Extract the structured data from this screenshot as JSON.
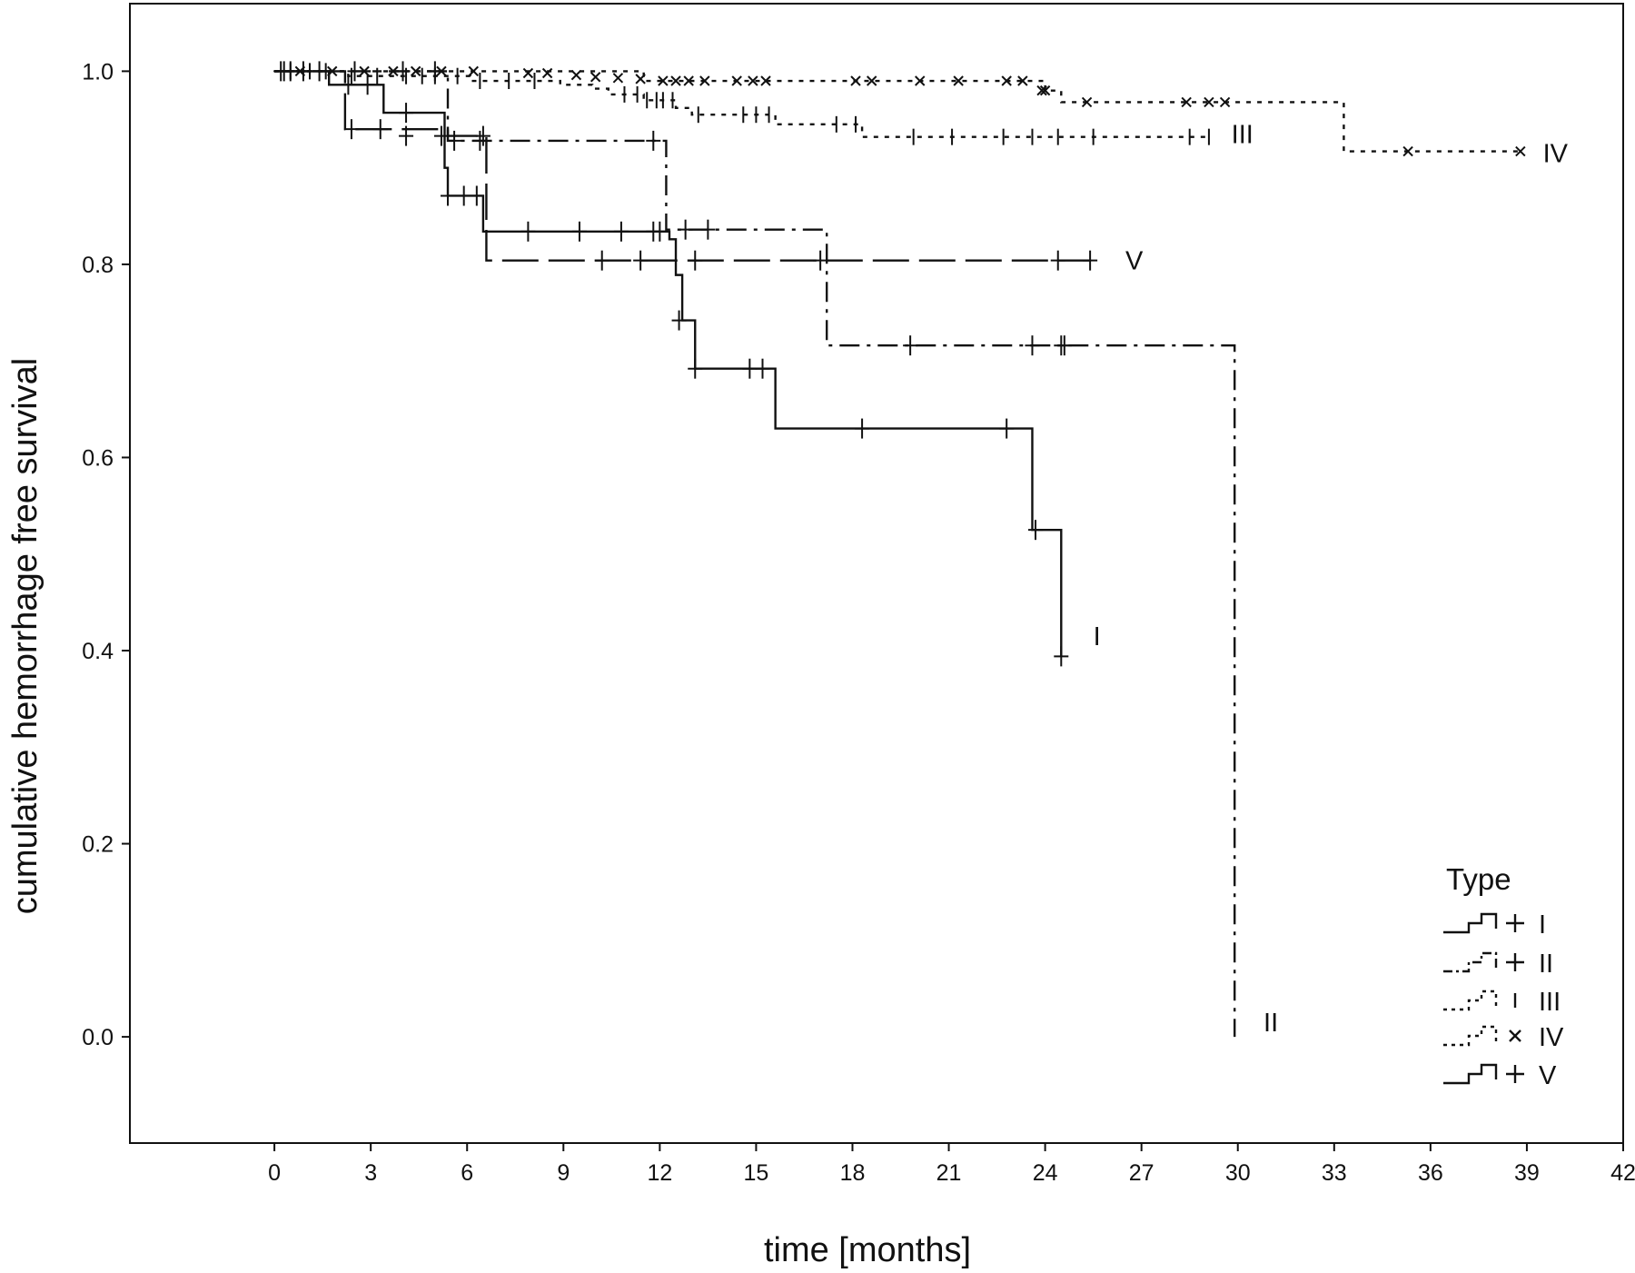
{
  "chart_data": {
    "type": "line",
    "step": true,
    "title": "",
    "xlabel": "time [months]",
    "ylabel": "cumulative hemorrhage free survival",
    "xlim": [
      -4.5,
      42
    ],
    "ylim": [
      -0.11,
      1.07
    ],
    "x_ticks": [
      0,
      3,
      6,
      9,
      12,
      15,
      18,
      21,
      24,
      27,
      30,
      33,
      36,
      39,
      42
    ],
    "y_ticks": [
      0.0,
      0.2,
      0.4,
      0.6,
      0.8,
      1.0
    ],
    "y_tick_format": "0.0",
    "grid": false,
    "legend": {
      "title": "Type",
      "position": "bottom-right"
    },
    "series": [
      {
        "name": "I",
        "dash": "solid",
        "censor_marker": "+",
        "steps": [
          [
            0,
            1.0
          ],
          [
            1.7,
            0.986
          ],
          [
            3.4,
            0.957
          ],
          [
            5.3,
            0.9
          ],
          [
            5.4,
            0.871
          ],
          [
            6.5,
            0.834
          ],
          [
            12.3,
            0.826
          ],
          [
            12.5,
            0.789
          ],
          [
            12.7,
            0.742
          ],
          [
            13.1,
            0.692
          ],
          [
            15.6,
            0.63
          ],
          [
            23.6,
            0.525
          ],
          [
            24.5,
            0.394
          ]
        ],
        "censored": [
          [
            0.2,
            1.0
          ],
          [
            0.5,
            1.0
          ],
          [
            0.9,
            1.0
          ],
          [
            1.4,
            1.0
          ],
          [
            2.3,
            0.986
          ],
          [
            2.9,
            0.986
          ],
          [
            4.1,
            0.957
          ],
          [
            5.4,
            0.871
          ],
          [
            5.9,
            0.871
          ],
          [
            6.3,
            0.871
          ],
          [
            7.9,
            0.834
          ],
          [
            9.5,
            0.834
          ],
          [
            10.8,
            0.834
          ],
          [
            11.8,
            0.834
          ],
          [
            12.0,
            0.834
          ],
          [
            12.6,
            0.742
          ],
          [
            13.1,
            0.692
          ],
          [
            14.8,
            0.692
          ],
          [
            15.2,
            0.692
          ],
          [
            18.3,
            0.63
          ],
          [
            22.8,
            0.63
          ],
          [
            23.7,
            0.525
          ],
          [
            24.5,
            0.394
          ]
        ],
        "end_label": {
          "text": "I",
          "x": 25.5,
          "y": 0.415
        }
      },
      {
        "name": "II",
        "dash": "dashdot",
        "censor_marker": "+",
        "steps": [
          [
            0,
            1.0
          ],
          [
            5.4,
            0.928
          ],
          [
            12.2,
            0.836
          ],
          [
            17.2,
            0.716
          ],
          [
            29.9,
            0.0
          ]
        ],
        "censored": [
          [
            0.3,
            1.0
          ],
          [
            2.5,
            1.0
          ],
          [
            4.0,
            1.0
          ],
          [
            5.0,
            1.0
          ],
          [
            5.6,
            0.928
          ],
          [
            6.4,
            0.928
          ],
          [
            11.8,
            0.928
          ],
          [
            12.8,
            0.836
          ],
          [
            13.5,
            0.836
          ],
          [
            19.8,
            0.716
          ],
          [
            23.6,
            0.716
          ],
          [
            24.5,
            0.716
          ],
          [
            24.6,
            0.716
          ]
        ],
        "end_label": {
          "text": "II",
          "x": 30.8,
          "y": 0.015
        }
      },
      {
        "name": "III",
        "dash": "dotted",
        "censor_marker": "|",
        "steps": [
          [
            0,
            1.0
          ],
          [
            2.3,
            0.995
          ],
          [
            6.1,
            0.99
          ],
          [
            8.9,
            0.986
          ],
          [
            9.9,
            0.982
          ],
          [
            10.4,
            0.976
          ],
          [
            11.5,
            0.97
          ],
          [
            12.5,
            0.962
          ],
          [
            13.0,
            0.955
          ],
          [
            15.6,
            0.945
          ],
          [
            18.3,
            0.932
          ]
        ],
        "censored": [
          [
            0.5,
            1.0
          ],
          [
            1.1,
            1.0
          ],
          [
            1.6,
            1.0
          ],
          [
            2.4,
            0.995
          ],
          [
            3.2,
            0.995
          ],
          [
            4.1,
            0.995
          ],
          [
            4.6,
            0.995
          ],
          [
            5.0,
            0.995
          ],
          [
            5.7,
            0.995
          ],
          [
            6.4,
            0.99
          ],
          [
            7.3,
            0.99
          ],
          [
            8.1,
            0.99
          ],
          [
            10.9,
            0.976
          ],
          [
            11.3,
            0.976
          ],
          [
            11.6,
            0.97
          ],
          [
            11.9,
            0.97
          ],
          [
            12.1,
            0.97
          ],
          [
            12.4,
            0.97
          ],
          [
            13.2,
            0.955
          ],
          [
            14.6,
            0.955
          ],
          [
            15.0,
            0.955
          ],
          [
            15.4,
            0.955
          ],
          [
            17.5,
            0.945
          ],
          [
            18.1,
            0.945
          ],
          [
            19.9,
            0.932
          ],
          [
            21.1,
            0.932
          ],
          [
            22.7,
            0.932
          ],
          [
            23.6,
            0.932
          ],
          [
            24.4,
            0.932
          ],
          [
            25.5,
            0.932
          ],
          [
            28.5,
            0.932
          ],
          [
            29.1,
            0.932
          ]
        ],
        "end_label": {
          "text": "III",
          "x": 29.8,
          "y": 0.935
        }
      },
      {
        "name": "IV",
        "dash": "dotted",
        "censor_marker": "x",
        "steps": [
          [
            0,
            1.0
          ],
          [
            11.5,
            0.99
          ],
          [
            24.0,
            0.98
          ],
          [
            24.5,
            0.968
          ],
          [
            33.3,
            0.917
          ]
        ],
        "censored": [
          [
            0.8,
            1.0
          ],
          [
            1.8,
            1.0
          ],
          [
            2.8,
            1.0
          ],
          [
            3.7,
            1.0
          ],
          [
            4.4,
            1.0
          ],
          [
            5.2,
            1.0
          ],
          [
            6.2,
            1.0
          ],
          [
            7.9,
            0.998
          ],
          [
            8.5,
            0.998
          ],
          [
            9.4,
            0.996
          ],
          [
            10.0,
            0.994
          ],
          [
            10.7,
            0.993
          ],
          [
            11.4,
            0.992
          ],
          [
            12.1,
            0.99
          ],
          [
            12.5,
            0.99
          ],
          [
            12.9,
            0.99
          ],
          [
            13.4,
            0.99
          ],
          [
            14.4,
            0.99
          ],
          [
            14.9,
            0.99
          ],
          [
            15.3,
            0.99
          ],
          [
            18.1,
            0.99
          ],
          [
            18.6,
            0.99
          ],
          [
            20.1,
            0.99
          ],
          [
            21.3,
            0.99
          ],
          [
            22.8,
            0.99
          ],
          [
            23.3,
            0.99
          ],
          [
            23.9,
            0.98
          ],
          [
            24.0,
            0.98
          ],
          [
            25.3,
            0.968
          ],
          [
            28.4,
            0.968
          ],
          [
            29.1,
            0.968
          ],
          [
            29.6,
            0.968
          ],
          [
            35.3,
            0.917
          ],
          [
            38.8,
            0.917
          ]
        ],
        "end_label": {
          "text": "IV",
          "x": 39.5,
          "y": 0.915
        }
      },
      {
        "name": "V",
        "dash": "longdash",
        "censor_marker": "+",
        "steps": [
          [
            0,
            1.0
          ],
          [
            2.2,
            0.94
          ],
          [
            5.4,
            0.933
          ],
          [
            6.6,
            0.804
          ]
        ],
        "censored": [
          [
            2.4,
            0.94
          ],
          [
            3.3,
            0.94
          ],
          [
            4.1,
            0.933
          ],
          [
            5.2,
            0.933
          ],
          [
            6.5,
            0.933
          ],
          [
            10.2,
            0.804
          ],
          [
            11.4,
            0.804
          ],
          [
            13.1,
            0.804
          ],
          [
            17.0,
            0.804
          ],
          [
            24.4,
            0.804
          ],
          [
            25.4,
            0.804
          ]
        ],
        "end_label": {
          "text": "V",
          "x": 26.5,
          "y": 0.804
        }
      }
    ]
  }
}
